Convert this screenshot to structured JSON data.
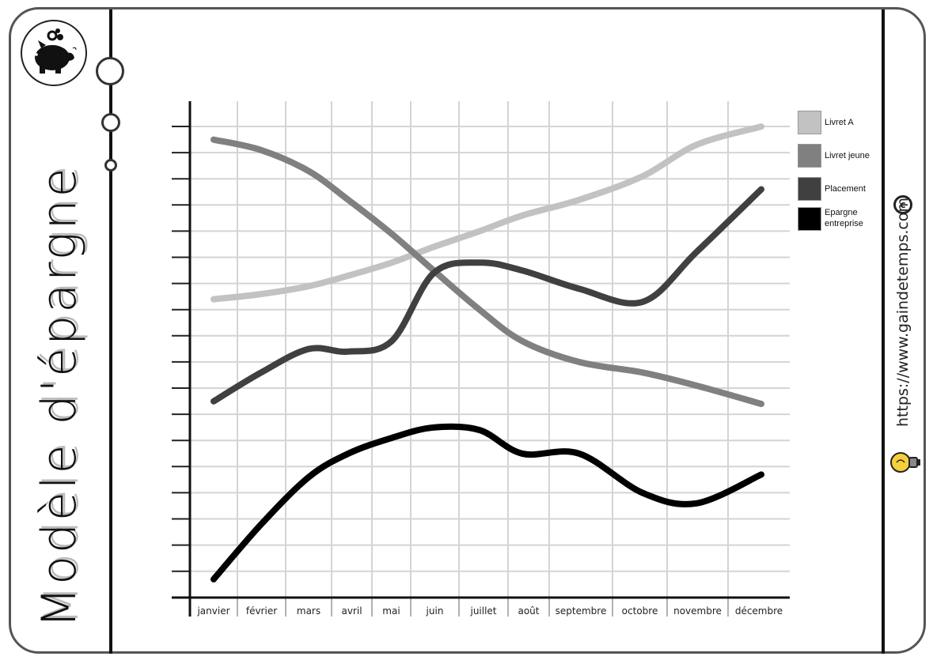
{
  "page": {
    "vertical_title": "Modèle d'épargne",
    "website": "https://www.gaindetemps.com",
    "copyright_symbol": "c"
  },
  "icons": {
    "logo": "piggy-bank-icon",
    "website_icon": "lightbulb-icon",
    "copyright": "copyright-icon"
  },
  "chart_data": {
    "type": "line",
    "title": "",
    "xlabel": "",
    "ylabel": "",
    "categories": [
      "janvier",
      "février",
      "mars",
      "avril",
      "mai",
      "juin",
      "juillet",
      "août",
      "septembre",
      "octobre",
      "novembre",
      "décembre"
    ],
    "y_tick_labels_shown": false,
    "ylim": [
      0,
      19
    ],
    "grid": true,
    "legend_position": "right",
    "series": [
      {
        "name": "Livret A",
        "color": "#c2c2c2",
        "values": [
          11.4,
          11.6,
          11.9,
          12.3,
          12.8,
          13.4,
          14.0,
          14.6,
          15.2,
          16.1,
          17.3,
          18.0
        ]
      },
      {
        "name": "Livret jeune",
        "color": "#808080",
        "values": [
          17.5,
          17.1,
          16.3,
          15.2,
          13.9,
          12.5,
          11.0,
          9.8,
          9.0,
          8.6,
          8.1,
          7.4
        ]
      },
      {
        "name": "Placement",
        "color": "#404040",
        "values": [
          7.5,
          8.6,
          9.5,
          9.4,
          9.8,
          12.4,
          12.8,
          12.5,
          11.8,
          11.3,
          13.2,
          15.6
        ]
      },
      {
        "name": "Epargne entreprise",
        "color": "#000000",
        "values": [
          0.7,
          2.8,
          4.6,
          5.5,
          6.1,
          6.5,
          6.4,
          5.5,
          5.5,
          4.0,
          3.6,
          4.7
        ]
      }
    ]
  }
}
